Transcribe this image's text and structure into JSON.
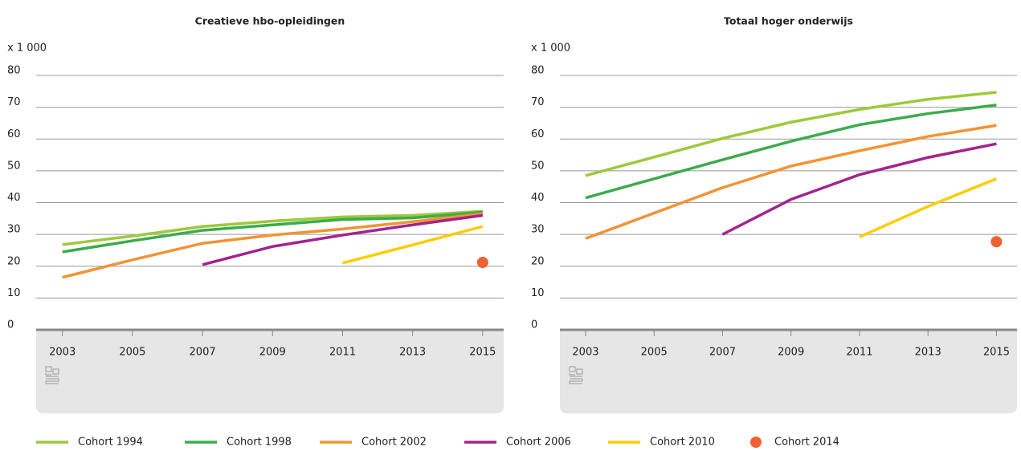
{
  "chart_data": [
    {
      "type": "line",
      "title": "Creatieve hbo-opleidingen",
      "y_label": "x 1 000",
      "x": [
        2003,
        2005,
        2007,
        2009,
        2011,
        2013,
        2015
      ],
      "xlim": [
        2002.25,
        2015.6
      ],
      "xticks": [
        2003,
        2005,
        2007,
        2009,
        2011,
        2013,
        2015
      ],
      "ylim": [
        0,
        80
      ],
      "yticks": [
        0,
        10,
        20,
        30,
        40,
        50,
        60,
        70,
        80
      ],
      "grid": true,
      "series": [
        {
          "values": [
            26.8,
            29.5,
            32.5,
            34.2,
            35.5,
            36,
            37.3
          ]
        },
        {
          "values": [
            24.5,
            28,
            31.3,
            33,
            34.7,
            35.2,
            37
          ]
        },
        {
          "values": [
            16.5,
            22,
            27.2,
            29.8,
            31.7,
            34,
            36.5
          ]
        },
        {
          "values": [
            null,
            null,
            20.5,
            26.2,
            29.8,
            33,
            36
          ]
        },
        {
          "values": [
            null,
            null,
            null,
            null,
            21,
            26.7,
            32.5
          ]
        },
        {
          "values": [
            null,
            null,
            null,
            null,
            null,
            null,
            21.2
          ]
        }
      ]
    },
    {
      "type": "line",
      "title": "Totaal hoger onderwijs",
      "y_label": "x 1 000",
      "x": [
        2003,
        2005,
        2007,
        2009,
        2011,
        2013,
        2015
      ],
      "xlim": [
        2002.25,
        2015.6
      ],
      "xticks": [
        2003,
        2005,
        2007,
        2009,
        2011,
        2013,
        2015
      ],
      "ylim": [
        0,
        80
      ],
      "yticks": [
        0,
        10,
        20,
        30,
        40,
        50,
        60,
        70,
        80
      ],
      "grid": true,
      "series": [
        {
          "values": [
            48.5,
            54.3,
            60.2,
            65.3,
            69.3,
            72.5,
            74.7
          ]
        },
        {
          "values": [
            41.5,
            47.5,
            53.5,
            59.3,
            64.5,
            68,
            70.7
          ]
        },
        {
          "values": [
            28.7,
            36.7,
            44.7,
            51.5,
            56.3,
            60.8,
            64.3
          ]
        },
        {
          "values": [
            null,
            null,
            30,
            41,
            48.8,
            54.2,
            58.5
          ]
        },
        {
          "values": [
            null,
            null,
            null,
            null,
            29.2,
            38.8,
            47.5
          ]
        },
        {
          "values": [
            null,
            null,
            null,
            null,
            null,
            null,
            27.7
          ]
        }
      ]
    }
  ],
  "legend": [
    {
      "name": "Cohort 1994",
      "color": "#9dc93b",
      "style": "line"
    },
    {
      "name": "Cohort 1998",
      "color": "#3bac4b",
      "style": "line"
    },
    {
      "name": "Cohort 2002",
      "color": "#f39332",
      "style": "line"
    },
    {
      "name": "Cohort 2006",
      "color": "#a3238e",
      "style": "line"
    },
    {
      "name": "Cohort 2010",
      "color": "#ffcc00",
      "style": "line"
    },
    {
      "name": "Cohort 2014",
      "color": "#f06132",
      "style": "dot"
    }
  ]
}
